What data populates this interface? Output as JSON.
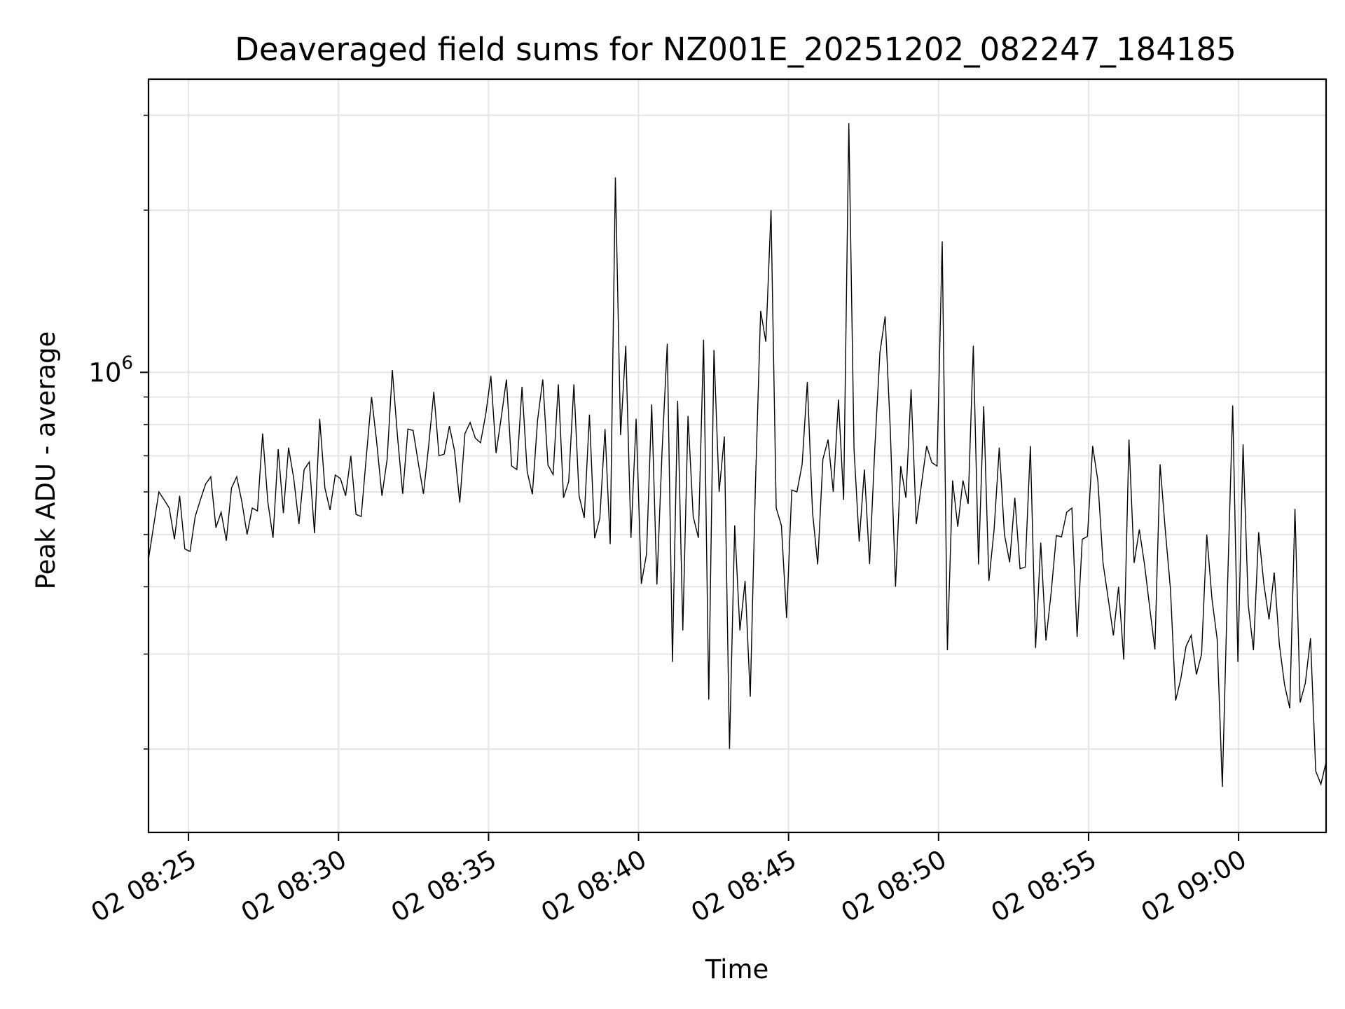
{
  "chart_data": {
    "type": "line",
    "title": "Deaveraged field sums for NZ001E_20251202_082247_184185",
    "xlabel": "Time",
    "ylabel": "Peak ADU - average",
    "x_start": "08:23:40",
    "x_end": "09:02:55",
    "xlim": [
      "08:23:40",
      "09:02:55"
    ],
    "x_ticks": [
      {
        "t": "08:25",
        "label": "02 08:25"
      },
      {
        "t": "08:30",
        "label": "02 08:30"
      },
      {
        "t": "08:35",
        "label": "02 08:35"
      },
      {
        "t": "08:40",
        "label": "02 08:40"
      },
      {
        "t": "08:45",
        "label": "02 08:45"
      },
      {
        "t": "08:50",
        "label": "02 08:50"
      },
      {
        "t": "08:55",
        "label": "02 08:55"
      },
      {
        "t": "09:00",
        "label": "02 09:00"
      }
    ],
    "y_scale": "log",
    "ylim": [
      140000,
      3500000
    ],
    "y_major_ticks": [
      {
        "value": 1000000,
        "base": "10",
        "exp": "6"
      }
    ],
    "y_minor_ticks": [
      200000,
      300000,
      400000,
      500000,
      600000,
      700000,
      800000,
      900000,
      2000000,
      3000000
    ],
    "grid": true,
    "line_color": "#000000",
    "series": [
      {
        "values": [
          450000,
          520000,
          600000,
          580000,
          560000,
          490000,
          590000,
          470000,
          465000,
          540000,
          580000,
          620000,
          640000,
          515000,
          550000,
          487000,
          610000,
          640000,
          575000,
          500000,
          560000,
          553000,
          770000,
          575000,
          493000,
          720000,
          548000,
          725000,
          635000,
          523000,
          660000,
          682000,
          503000,
          820000,
          610000,
          555000,
          645000,
          635000,
          590000,
          700000,
          545000,
          540000,
          700000,
          900000,
          740000,
          590000,
          690000,
          1010000,
          760000,
          595000,
          785000,
          780000,
          680000,
          595000,
          730000,
          920000,
          700000,
          705000,
          795000,
          715000,
          573000,
          770000,
          807000,
          755000,
          740000,
          835000,
          985000,
          708000,
          825000,
          970000,
          670000,
          660000,
          940000,
          654000,
          594000,
          815000,
          970000,
          673000,
          646000,
          950000,
          585000,
          627000,
          950000,
          590000,
          537000,
          835000,
          492000,
          536000,
          785000,
          480000,
          2300000,
          765000,
          1120000,
          493000,
          820000,
          405000,
          460000,
          872000,
          404000,
          715000,
          1130000,
          290000,
          885000,
          332000,
          830000,
          540000,
          493000,
          1150000,
          247000,
          1100000,
          600000,
          760000,
          200000,
          520000,
          332000,
          410000,
          250000,
          620000,
          1300000,
          1140000,
          2000000,
          560000,
          520000,
          350000,
          605000,
          600000,
          675000,
          960000,
          550000,
          440000,
          690000,
          750000,
          600000,
          890000,
          580000,
          2900000,
          720000,
          485000,
          660000,
          441000,
          720000,
          1090000,
          1270000,
          780000,
          400000,
          670000,
          585000,
          930000,
          523000,
          620000,
          730000,
          680000,
          670000,
          1750000,
          305000,
          630000,
          517000,
          630000,
          570000,
          1120000,
          440000,
          865000,
          410000,
          510000,
          725000,
          500000,
          444000,
          585000,
          432000,
          435000,
          730000,
          308000,
          483000,
          318000,
          390000,
          498000,
          495000,
          550000,
          560000,
          323000,
          490000,
          496000,
          730000,
          630000,
          443000,
          380000,
          325000,
          400000,
          293000,
          750000,
          443000,
          511000,
          440000,
          366000,
          306000,
          675000,
          510000,
          396000,
          246000,
          270000,
          310000,
          325000,
          275000,
          300000,
          500000,
          380000,
          320000,
          170000,
          400000,
          868000,
          290000,
          735000,
          370000,
          305000,
          505000,
          405000,
          348000,
          425000,
          312000,
          263000,
          238000,
          558000,
          244000,
          265000,
          321000,
          182000,
          172000,
          189000
        ]
      }
    ]
  }
}
